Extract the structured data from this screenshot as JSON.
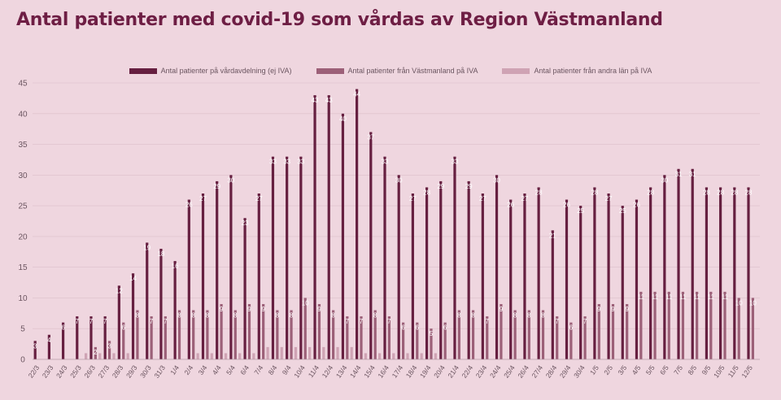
{
  "title": "Antal patienter med covid-19 som vårdas av Region Västmanland",
  "colors": {
    "background": "#efd6df",
    "title": "#6e1e44",
    "grid": "#dcbfca",
    "text": "#6b5560"
  },
  "chart_data": {
    "type": "bar",
    "title": "Antal patienter med covid-19 som vårdas av Region Västmanland",
    "xlabel": "",
    "ylabel": "",
    "ylim": [
      0,
      45
    ],
    "yticks": [
      0,
      5,
      10,
      15,
      20,
      25,
      30,
      35,
      40,
      45
    ],
    "grid": true,
    "legend_position": "top-center",
    "categories": [
      "22/3",
      "23/3",
      "24/3",
      "25/3",
      "26/3",
      "27/3",
      "28/3",
      "29/3",
      "30/3",
      "31/3",
      "1/4",
      "2/4",
      "3/4",
      "4/4",
      "5/4",
      "6/4",
      "7/4",
      "8/4",
      "9/4",
      "10/4",
      "11/4",
      "12/4",
      "13/4",
      "14/4",
      "15/4",
      "16/4",
      "17/4",
      "18/4",
      "19/4",
      "20/4",
      "21/4",
      "22/4",
      "23/4",
      "24/4",
      "25/4",
      "26/4",
      "27/4",
      "28/4",
      "29/4",
      "30/4",
      "1/5",
      "2/5",
      "3/5",
      "4/5",
      "5/5",
      "6/5",
      "7/5",
      "8/5",
      "9/5",
      "10/5",
      "11/5",
      "12/5"
    ],
    "series": [
      {
        "name": "Antal patienter på vårdavdelning (ej IVA)",
        "color": "#661f40",
        "values": [
          3,
          4,
          6,
          7,
          7,
          7,
          12,
          14,
          19,
          18,
          16,
          26,
          27,
          29,
          30,
          23,
          27,
          33,
          33,
          33,
          43,
          43,
          40,
          44,
          37,
          33,
          30,
          27,
          28,
          29,
          33,
          29,
          27,
          30,
          26,
          27,
          28,
          21,
          26,
          25,
          28,
          27,
          25,
          26,
          28,
          30,
          31,
          31,
          28,
          28,
          28,
          28
        ]
      },
      {
        "name": "Antal patienter från Västmanland på IVA",
        "color": "#9c6078",
        "values": [
          0,
          0,
          0,
          0,
          2,
          3,
          6,
          8,
          7,
          7,
          8,
          8,
          8,
          9,
          8,
          9,
          9,
          8,
          8,
          10,
          9,
          8,
          7,
          7,
          8,
          7,
          6,
          6,
          5,
          6,
          8,
          8,
          7,
          9,
          8,
          8,
          8,
          7,
          6,
          7,
          9,
          9,
          9,
          11,
          11,
          11,
          11,
          11,
          11,
          11,
          10,
          10
        ]
      },
      {
        "name": "Antal patienter från andra län på IVA",
        "color": "#cfa3b4",
        "values": [
          0,
          0,
          0,
          1,
          1,
          1,
          1,
          0,
          0,
          0,
          0,
          1,
          1,
          1,
          1,
          1,
          2,
          2,
          2,
          2,
          2,
          2,
          2,
          1,
          1,
          1,
          1,
          1,
          1,
          0,
          0,
          0,
          0,
          0,
          0,
          0,
          0,
          0,
          0,
          0,
          0,
          0,
          0,
          0,
          0,
          0,
          0,
          0,
          0,
          0,
          0,
          0
        ]
      }
    ]
  }
}
